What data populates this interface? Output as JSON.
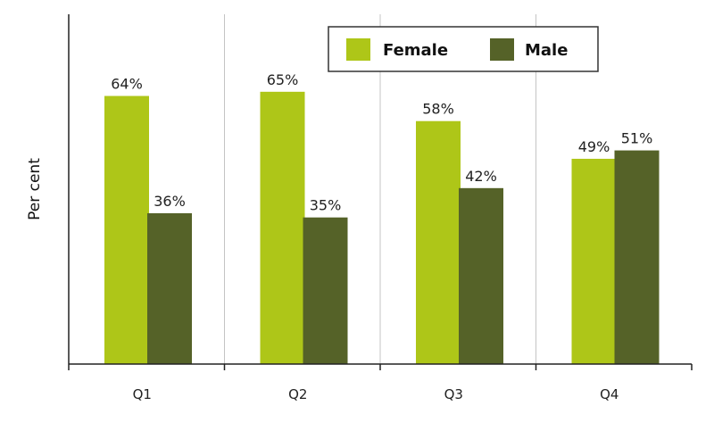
{
  "chart_data": {
    "type": "bar",
    "categories": [
      "Q1",
      "Q2",
      "Q3",
      "Q4"
    ],
    "series": [
      {
        "name": "Female",
        "values": [
          64,
          65,
          58,
          49
        ],
        "labels": [
          "64%",
          "65%",
          "58%",
          "49%"
        ],
        "color": "#aec618"
      },
      {
        "name": "Male",
        "values": [
          36,
          35,
          42,
          51
        ],
        "labels": [
          "36%",
          "35%",
          "42%",
          "51%"
        ],
        "color": "#556228"
      }
    ],
    "title": "",
    "xlabel": "",
    "ylabel": "Per cent",
    "ylim": [
      0,
      83.5
    ],
    "grid": "vertical separators between categories",
    "legend_position": "top-right"
  }
}
